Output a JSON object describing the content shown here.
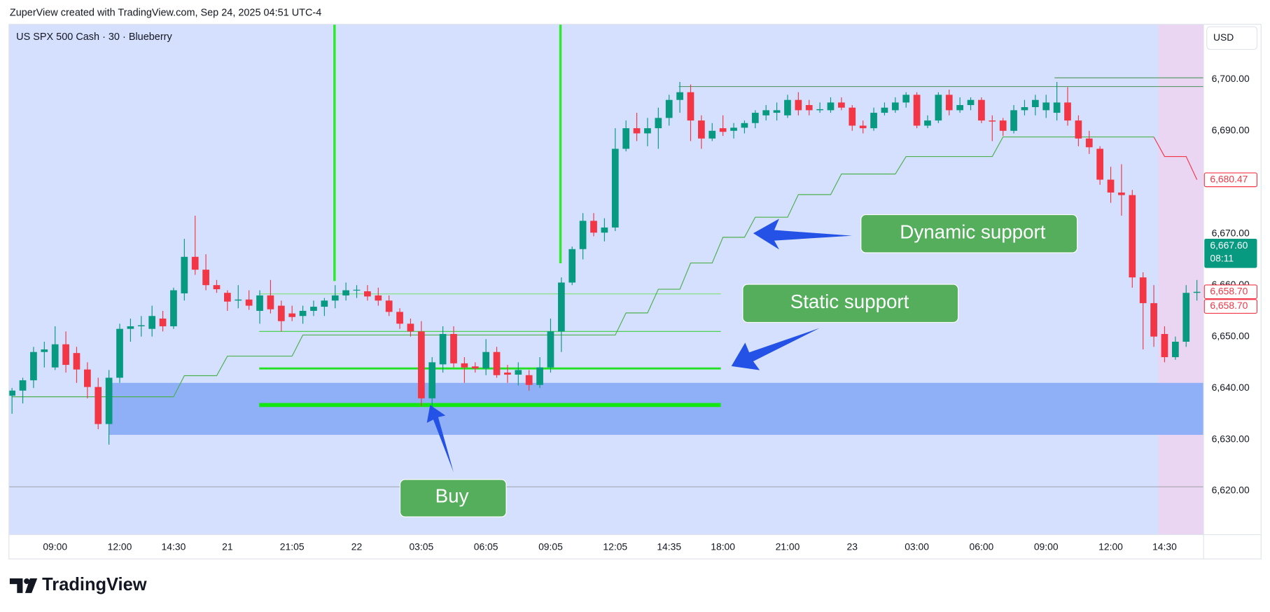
{
  "header": "ZuperView created with TradingView.com, Sep 24, 2025 04:51 UTC-4",
  "brand": "TradingView",
  "chart_data": {
    "type": "candlestick",
    "title": "US SPX 500 Cash · 30 · Blueberry",
    "currency": "USD",
    "up_color": "#089981",
    "down_color": "#f23645",
    "grid": false,
    "categories": [
      null,
      null,
      null,
      null,
      "09:00",
      null,
      null,
      null,
      null,
      null,
      "12:00",
      null,
      null,
      null,
      null,
      "14:30",
      null,
      null,
      null,
      null,
      "21",
      null,
      null,
      null,
      null,
      null,
      "21:05",
      null,
      null,
      null,
      null,
      null,
      "22",
      null,
      null,
      null,
      null,
      null,
      "03:05",
      null,
      null,
      null,
      null,
      null,
      "06:05",
      null,
      null,
      null,
      null,
      null,
      "09:05",
      null,
      null,
      null,
      null,
      null,
      "12:05",
      null,
      null,
      null,
      null,
      "14:35",
      null,
      null,
      null,
      null,
      "18:00",
      null,
      null,
      null,
      null,
      null,
      "21:00",
      null,
      null,
      null,
      null,
      null,
      "23",
      null,
      null,
      null,
      null,
      null,
      "03:00",
      null,
      null,
      null,
      null,
      null,
      "06:00",
      null,
      null,
      null,
      null,
      null,
      "09:00",
      null,
      null,
      null,
      null,
      null,
      "12:00",
      null,
      null,
      null,
      null,
      "14:30",
      null,
      null,
      null
    ],
    "open": [
      6638.5,
      6639.5,
      6641.5,
      6647,
      6644,
      6648.5,
      6646.8,
      6643.6,
      6640.2,
      6633,
      6642,
      6651.5,
      6652,
      6651.5,
      6653.5,
      6652,
      6658.4,
      6665.5,
      6663,
      6660,
      6658.5,
      6657,
      6657.2,
      6655,
      6658,
      6656,
      6654.5,
      6654,
      6655,
      6655.8,
      6657,
      6658,
      6659,
      6658.8,
      6658,
      6657,
      6654.8,
      6652.5,
      6651,
      6638,
      6644.6,
      6650.5,
      6644.8,
      6644.2,
      6643.8,
      6647,
      6643,
      6642.6,
      6642.5,
      6640.6,
      6644,
      6651,
      6660.5,
      6667,
      6672.5,
      6670.2,
      6671.2,
      6686.5,
      6690.5,
      6689.5,
      6690.5,
      6692.5,
      6696,
      6697.5,
      6692,
      6688.5,
      6690.5,
      6690,
      6690.6,
      6691.5,
      6693,
      6693.5,
      6693,
      6696,
      6695,
      6694,
      6694,
      6695.5,
      6694.5,
      6691,
      6690.5,
      6693.5,
      6694,
      6695.5,
      6697,
      6691,
      6692,
      6697,
      6694,
      6695,
      6696,
      6692,
      6692,
      6690,
      6694,
      6694.6,
      6694,
      6693.5,
      6695.5,
      6692,
      6688.5,
      6686.5,
      6680.5,
      6678,
      6677.5,
      6661.5,
      6656.5,
      6650.5,
      6646,
      6649,
      6658.5
    ],
    "high": [
      6640,
      6642,
      6648,
      6649,
      6652,
      6651,
      6648,
      6645,
      6642,
      6643.5,
      6652.5,
      6653.5,
      6654,
      6656,
      6655,
      6659.5,
      6669,
      6673.5,
      6666,
      6661,
      6659,
      6660,
      6659,
      6659,
      6661,
      6657,
      6656,
      6656,
      6657,
      6657.5,
      6660,
      6660.5,
      6660,
      6660,
      6659.5,
      6658,
      6655.5,
      6653.5,
      6653,
      6646,
      6652,
      6652,
      6646,
      6645,
      6649.5,
      6648,
      6644.5,
      6645,
      6643.5,
      6646,
      6653.5,
      6661.5,
      6667.5,
      6674,
      6674,
      6673,
      6690.5,
      6692,
      6693.5,
      6692.5,
      6694.5,
      6697,
      6699.5,
      6699,
      6693,
      6691.5,
      6693,
      6691.5,
      6692,
      6694,
      6695,
      6695.5,
      6697,
      6697.5,
      6696,
      6695.5,
      6696.5,
      6696.5,
      6695,
      6692,
      6694.5,
      6695.5,
      6696.5,
      6697.5,
      6697.5,
      6693,
      6697.5,
      6698,
      6696.5,
      6696.5,
      6696.5,
      6693,
      6692.5,
      6695,
      6696,
      6697,
      6697,
      6699.5,
      6698.5,
      6693,
      6690,
      6687,
      6683,
      6683.5,
      6678.5,
      6662.5,
      6660,
      6652,
      6650,
      6660,
      6661
    ],
    "low": [
      6635,
      6637,
      6640,
      6644,
      6643.5,
      6643,
      6641,
      6638,
      6632,
      6629,
      6641,
      6649,
      6650,
      6650,
      6651,
      6651.5,
      6657,
      6662,
      6659,
      6658.5,
      6655,
      6655.5,
      6655.2,
      6652.5,
      6654.5,
      6651,
      6653,
      6652.5,
      6654,
      6654,
      6655.5,
      6657,
      6657.5,
      6657,
      6656,
      6654,
      6651.5,
      6650,
      6636.5,
      6636,
      6643,
      6644,
      6641,
      6643,
      6642.5,
      6642,
      6641,
      6640.5,
      6639.5,
      6640,
      6643,
      6647,
      6660,
      6665,
      6669.5,
      6668.5,
      6670.5,
      6686,
      6688,
      6687,
      6686.5,
      6691,
      6693.5,
      6688,
      6686.5,
      6688,
      6689,
      6688.5,
      6689.5,
      6690.5,
      6692,
      6692,
      6692.5,
      6693,
      6693,
      6693.5,
      6693.5,
      6694,
      6690,
      6689.5,
      6690,
      6693,
      6693.5,
      6694.5,
      6690.5,
      6690.5,
      6691.5,
      6693,
      6693.5,
      6694,
      6691.5,
      6688,
      6689,
      6689.5,
      6693,
      6693,
      6692.5,
      6692,
      6691,
      6687,
      6685.5,
      6679.5,
      6676,
      6673.5,
      6659.5,
      6647.5,
      6648,
      6645,
      6645.5,
      6648,
      6657
    ],
    "close": [
      6639.5,
      6641.5,
      6647,
      6647.5,
      6648.5,
      6644.5,
      6643.6,
      6640.2,
      6633,
      6642,
      6651.5,
      6652,
      6652.2,
      6654,
      6652,
      6659,
      6665.5,
      6663,
      6660,
      6659.2,
      6656.8,
      6657.2,
      6656,
      6658,
      6655.3,
      6653,
      6653.8,
      6655,
      6655.8,
      6657,
      6658,
      6659,
      6659.1,
      6657.8,
      6657,
      6654.8,
      6652.5,
      6651,
      6638,
      6645,
      6650.5,
      6644.8,
      6644,
      6643.8,
      6647,
      6642.5,
      6642.6,
      6643.5,
      6640.6,
      6644,
      6651,
      6660.5,
      6667,
      6672.5,
      6670.2,
      6671.2,
      6686.5,
      6690.5,
      6689.5,
      6690.5,
      6692.5,
      6696,
      6697.5,
      6692,
      6688.5,
      6690,
      6689.8,
      6690.6,
      6691.5,
      6693.5,
      6694,
      6694,
      6696,
      6694,
      6694,
      6694.2,
      6695.5,
      6694.5,
      6691,
      6690.5,
      6693.5,
      6694.5,
      6695.5,
      6697,
      6691,
      6692,
      6697,
      6694,
      6695,
      6696,
      6692,
      6691.8,
      6690,
      6694,
      6694.6,
      6696,
      6695.5,
      6695.5,
      6692,
      6688.5,
      6686.8,
      6680.5,
      6678,
      6677.5,
      6661.5,
      6656.5,
      6650,
      6646,
      6649,
      6658.5,
      6658.7
    ],
    "lines": [
      {
        "color": "#4caf50",
        "values": [
          6638.3,
          6638.3,
          6638.3,
          6638.3,
          6638.3,
          6638.3,
          6638.3,
          6638.3,
          6638.3,
          6638.3,
          6638.3,
          6638.3,
          6638.3,
          6638.3,
          6638.3,
          6638.3,
          6642.4,
          6642.4,
          6642.4,
          6642.4,
          6646.2,
          6646.2,
          6646.2,
          6646.2,
          6646.2,
          6646.2,
          6646.2,
          6650.3,
          6650.3,
          6650.3,
          6650.3,
          6650.3,
          6650.3,
          6650.3,
          6650.3,
          6650.3,
          6650.3,
          6650.3,
          6650.3,
          6650.3,
          6650.3,
          6650.3,
          6650.3,
          6650.3,
          6650.3,
          6650.3,
          6650.3,
          6650.3,
          6650.3,
          6650.3,
          6650.3,
          6650.3,
          6650.3,
          6650.3,
          6650.3,
          6650.3,
          6650.3,
          6654.6,
          6654.6,
          6654.6,
          6659.2,
          6659.2,
          6659.2,
          6664.3,
          6664.3,
          6664.3,
          6669.3,
          6669.3,
          6669.3,
          6673.2,
          6673.2,
          6673.2,
          6673.2,
          6677.6,
          6677.6,
          6677.6,
          6677.6,
          6681.6,
          6681.6,
          6681.6,
          6681.6,
          6681.6,
          6681.6,
          6685,
          6685,
          6685,
          6685,
          6685,
          6685,
          6685,
          6685,
          6685,
          6688.8,
          6688.8,
          6688.8,
          6688.8,
          6688.8,
          6688.8,
          6688.8,
          6688.8,
          6688.8,
          6688.8,
          6688.8,
          6688.8,
          6688.8,
          6688.8,
          6688.8,
          null,
          null,
          null,
          null
        ]
      },
      {
        "color": "#f23645",
        "values": [
          null,
          null,
          null,
          null,
          null,
          null,
          null,
          null,
          null,
          null,
          null,
          null,
          null,
          null,
          null,
          null,
          null,
          null,
          null,
          null,
          null,
          null,
          null,
          null,
          null,
          null,
          null,
          null,
          null,
          null,
          null,
          null,
          null,
          null,
          null,
          null,
          null,
          null,
          null,
          null,
          null,
          null,
          null,
          null,
          null,
          null,
          null,
          null,
          null,
          null,
          null,
          null,
          null,
          null,
          null,
          null,
          null,
          null,
          null,
          null,
          null,
          null,
          null,
          null,
          null,
          null,
          null,
          null,
          null,
          null,
          null,
          null,
          null,
          null,
          null,
          null,
          null,
          null,
          null,
          null,
          null,
          null,
          null,
          null,
          null,
          null,
          null,
          null,
          null,
          null,
          null,
          null,
          null,
          null,
          null,
          null,
          null,
          null,
          null,
          null,
          null,
          null,
          null,
          null,
          null,
          null,
          6688.8,
          6685,
          6685,
          6685,
          6680.5
        ]
      }
    ],
    "levels": [
      {
        "value": 6658.3,
        "color": "#7be07b",
        "width": 1
      },
      {
        "value": 6651,
        "color": "#3ccf3c",
        "width": 1
      },
      {
        "value": 6643.8,
        "color": "#22e022",
        "width": 2.5
      },
      {
        "value": 6636.7,
        "color": "#14e614",
        "width": 5
      },
      {
        "value": 6698.6,
        "color": "#5a9a6a",
        "width": 1
      },
      {
        "value": 6700.3,
        "color": "#5a9a6a",
        "width": 1
      },
      {
        "value": 6620.8,
        "color": "#9598a1",
        "width": 0.8
      }
    ],
    "zone": [
      6630.9,
      6641
    ],
    "ylim": [
      6611.5,
      6710.7
    ],
    "yticks": [
      {
        "value": 6620,
        "label": "6,620.00"
      },
      {
        "value": 6630,
        "label": "6,630.00"
      },
      {
        "value": 6640,
        "label": "6,640.00"
      },
      {
        "value": 6650,
        "label": "6,650.00"
      },
      {
        "value": 6660,
        "label": "6,660.00"
      },
      {
        "value": 6670,
        "label": "6,670.00"
      },
      {
        "value": 6680,
        "label": "6,680.00"
      },
      {
        "value": 6690,
        "label": "6,690.00"
      },
      {
        "value": 6700,
        "label": "6,700.00"
      }
    ],
    "price_labels": [
      {
        "value": 6680.47,
        "label": "6,680.47",
        "color": "#f23645"
      },
      {
        "value": 6667.6,
        "label": "6,667.60",
        "sub": "08:11",
        "color": "#089981"
      },
      {
        "value": 6658.7,
        "label": "6,658.70",
        "color": "#f23645"
      },
      {
        "value": 6658.7,
        "label": "6,658.70",
        "color": "#f23645"
      }
    ],
    "annotations": [
      "Dynamic support",
      "Static support",
      "Buy"
    ]
  }
}
